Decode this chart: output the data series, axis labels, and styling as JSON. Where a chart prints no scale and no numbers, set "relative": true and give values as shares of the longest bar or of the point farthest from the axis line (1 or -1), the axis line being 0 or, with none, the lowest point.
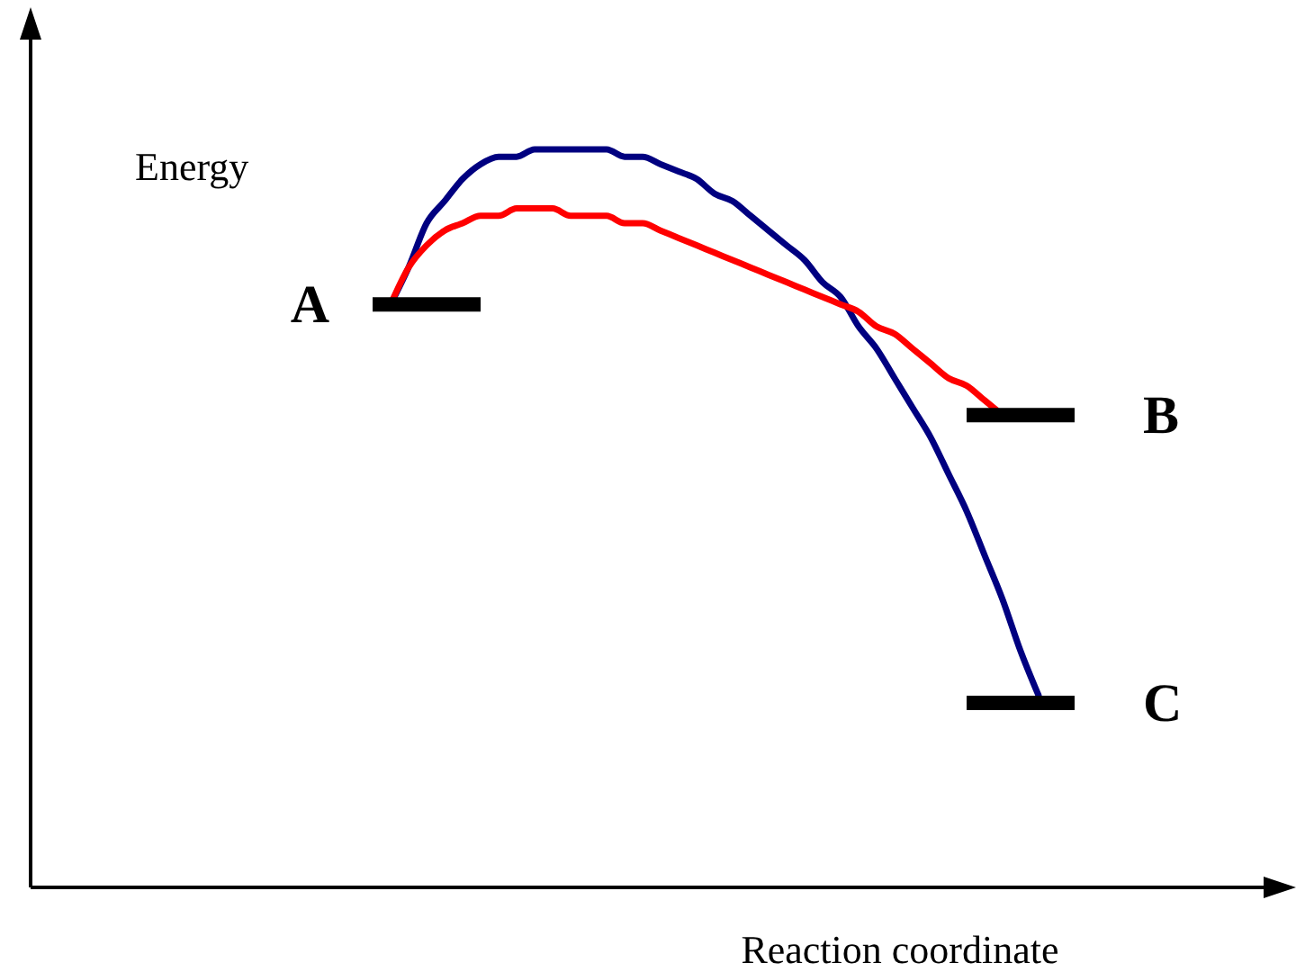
{
  "chart_data": {
    "type": "line",
    "relative": true,
    "xlabel": "Reaction coordinate",
    "ylabel": "Energy",
    "categories": [
      null,
      null,
      null,
      null,
      null,
      null,
      null,
      null,
      null,
      null,
      null,
      null,
      null,
      null,
      null,
      null,
      null,
      null,
      null,
      null,
      null,
      null,
      null,
      null,
      null,
      null,
      null,
      null,
      null,
      null,
      null,
      null,
      null,
      null,
      null,
      null,
      null,
      null,
      null,
      null,
      null,
      null,
      null,
      null,
      null,
      null,
      null,
      null,
      null,
      null,
      null,
      null,
      null,
      null,
      null,
      null,
      null,
      null,
      null,
      null,
      null,
      null,
      null,
      null,
      null,
      null,
      null,
      null,
      null,
      null,
      null
    ],
    "series": [
      {
        "color": "#000080",
        "values": [
          null,
          null,
          null,
          null,
          null,
          null,
          null,
          null,
          null,
          null,
          null,
          null,
          null,
          null,
          null,
          null,
          null,
          null,
          null,
          null,
          0.79,
          0.84,
          0.9,
          0.93,
          0.96,
          0.98,
          0.99,
          0.99,
          1,
          1,
          1,
          1,
          1,
          0.99,
          0.99,
          0.98,
          0.97,
          0.96,
          0.94,
          0.93,
          0.91,
          0.89,
          0.87,
          0.85,
          0.82,
          0.8,
          0.76,
          0.73,
          0.69,
          0.65,
          0.61,
          0.56,
          0.51,
          0.45,
          0.39,
          0.32,
          0.26,
          null,
          null,
          null,
          null,
          null,
          null,
          null,
          null,
          null,
          null,
          null,
          null,
          null,
          null
        ]
      },
      {
        "color": "#ff0000",
        "values": [
          null,
          null,
          null,
          null,
          null,
          null,
          null,
          null,
          null,
          null,
          null,
          null,
          null,
          null,
          null,
          null,
          null,
          null,
          null,
          null,
          0.79,
          0.84,
          0.87,
          0.89,
          0.9,
          0.91,
          0.91,
          0.92,
          0.92,
          0.92,
          0.91,
          0.91,
          0.91,
          0.9,
          0.9,
          0.89,
          0.88,
          0.87,
          0.86,
          0.85,
          0.84,
          0.83,
          0.82,
          0.81,
          0.8,
          0.79,
          0.78,
          0.76,
          0.75,
          0.73,
          0.71,
          0.69,
          0.68,
          0.66,
          0.64,
          null,
          null,
          null,
          null,
          null,
          null,
          null,
          null,
          null,
          null,
          null,
          null,
          null,
          null,
          null,
          null
        ]
      },
      {
        "type": "step",
        "name": "A",
        "color": "#000000",
        "values": [
          null,
          null,
          null,
          null,
          null,
          null,
          null,
          null,
          null,
          null,
          null,
          null,
          null,
          null,
          null,
          null,
          null,
          null,
          null,
          0.79,
          0.79,
          0.79,
          0.79,
          0.79,
          0.79,
          0.79,
          null,
          null,
          null,
          null,
          null,
          null,
          null,
          null,
          null,
          null,
          null,
          null,
          null,
          null,
          null,
          null,
          null,
          null,
          null,
          null,
          null,
          null,
          null,
          null,
          null,
          null,
          null,
          null,
          null,
          null,
          null,
          null,
          null,
          null,
          null,
          null,
          null,
          null,
          null,
          null,
          null,
          null,
          null,
          null,
          null
        ]
      },
      {
        "type": "step",
        "name": "B",
        "color": "#000000",
        "values": [
          null,
          null,
          null,
          null,
          null,
          null,
          null,
          null,
          null,
          null,
          null,
          null,
          null,
          null,
          null,
          null,
          null,
          null,
          null,
          null,
          null,
          null,
          null,
          null,
          null,
          null,
          null,
          null,
          null,
          null,
          null,
          null,
          null,
          null,
          null,
          null,
          null,
          null,
          null,
          null,
          null,
          null,
          null,
          null,
          null,
          null,
          null,
          null,
          null,
          null,
          null,
          null,
          0.64,
          0.64,
          0.64,
          0.64,
          0.64,
          0.64,
          0.64,
          null,
          null,
          null,
          null,
          null,
          null,
          null,
          null,
          null,
          null,
          null,
          null
        ]
      },
      {
        "type": "step",
        "name": "C",
        "color": "#000000",
        "values": [
          null,
          null,
          null,
          null,
          null,
          null,
          null,
          null,
          null,
          null,
          null,
          null,
          null,
          null,
          null,
          null,
          null,
          null,
          null,
          null,
          null,
          null,
          null,
          null,
          null,
          null,
          null,
          null,
          null,
          null,
          null,
          null,
          null,
          null,
          null,
          null,
          null,
          null,
          null,
          null,
          null,
          null,
          null,
          null,
          null,
          null,
          null,
          null,
          null,
          null,
          null,
          null,
          0.25,
          0.25,
          0.25,
          0.25,
          0.25,
          0.25,
          0.25,
          null,
          null,
          null,
          null,
          null,
          null,
          null,
          null,
          null,
          null,
          null,
          null
        ]
      }
    ]
  }
}
